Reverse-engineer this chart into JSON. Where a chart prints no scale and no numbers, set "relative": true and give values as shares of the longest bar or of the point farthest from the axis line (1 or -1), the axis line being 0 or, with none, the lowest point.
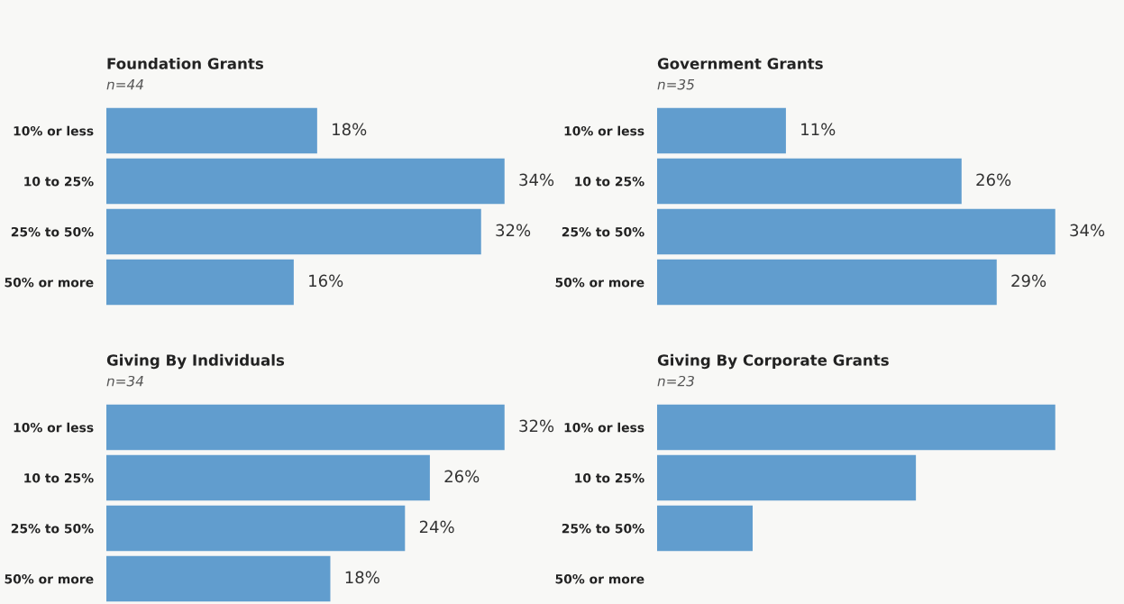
{
  "chart_data": [
    {
      "type": "bar",
      "orientation": "horizontal",
      "title": "Foundation Grants",
      "subtitle": "n=44",
      "categories": [
        "10% or less",
        "10 to 25%",
        "25% to 50%",
        "50% or more"
      ],
      "values": [
        18,
        34,
        32,
        16
      ],
      "value_labels": [
        "18%",
        "34%",
        "32%",
        "16%"
      ],
      "color": "#619dce",
      "tick_labels": "y"
    },
    {
      "type": "bar",
      "orientation": "horizontal",
      "title": "Government Grants",
      "subtitle": "n=35",
      "categories": [
        "10% or less",
        "10 to 25%",
        "25% to 50%",
        "50% or more"
      ],
      "values": [
        11,
        26,
        34,
        29
      ],
      "value_labels": [
        "11%",
        "26%",
        "34%",
        "29%"
      ],
      "color": "#619dce",
      "tick_labels": "y"
    },
    {
      "type": "bar",
      "orientation": "horizontal",
      "title": "Giving By Individuals",
      "subtitle": "n=34",
      "categories": [
        "10% or less",
        "10 to 25%",
        "25% to 50%",
        "50% or more"
      ],
      "values": [
        32,
        26,
        24,
        18
      ],
      "value_labels": [
        "32%",
        "26%",
        "24%",
        "18%"
      ],
      "color": "#619dce",
      "tick_labels": "y"
    },
    {
      "type": "bar",
      "orientation": "horizontal",
      "title": "Giving By Corporate Grants",
      "subtitle": "n=23",
      "categories": [
        "10% or less",
        "10 to 25%",
        "25% to 50%",
        "50% or more"
      ],
      "values": [
        1,
        0.65,
        0.24,
        0
      ],
      "relative": true,
      "color": "#619dce",
      "tick_labels": "y"
    }
  ]
}
